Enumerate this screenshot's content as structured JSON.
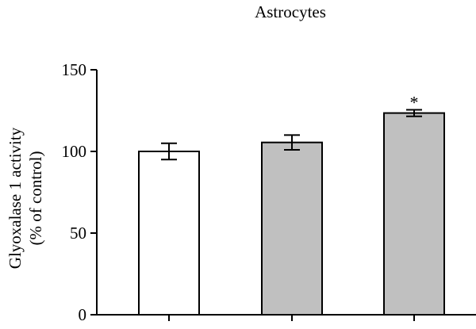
{
  "chart_data": {
    "type": "bar",
    "title": "Astrocytes",
    "ylabel": [
      "Glyoxalase 1 activity",
      "(% of control)"
    ],
    "xlabel": "",
    "categories": [
      "",
      "",
      ""
    ],
    "values": [
      100,
      105.5,
      123.5
    ],
    "errors": [
      5,
      4.5,
      2
    ],
    "annotations": [
      "",
      "",
      "*"
    ],
    "ylim": [
      0,
      150
    ],
    "yticks": [
      0,
      50,
      100,
      150
    ],
    "bar_colors": [
      "#ffffff",
      "#c0c0c0",
      "#c0c0c0"
    ],
    "grid": false
  }
}
